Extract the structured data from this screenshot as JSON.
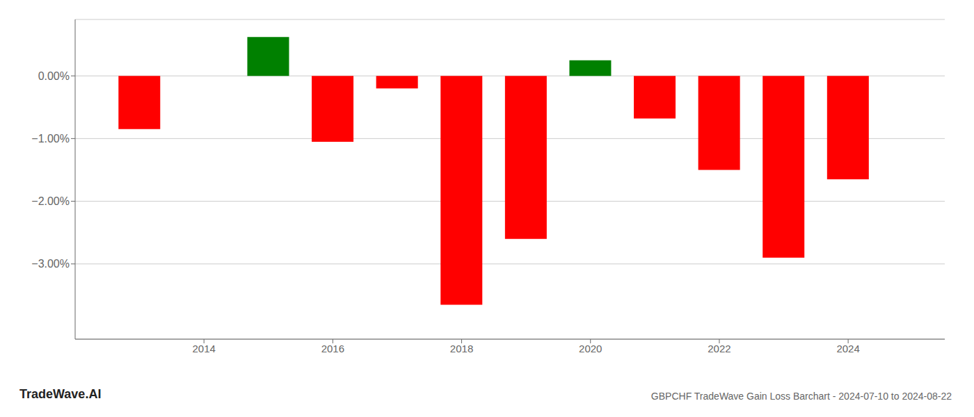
{
  "chart_data": {
    "type": "bar",
    "title": "GBPCHF TradeWave Gain Loss Barchart - 2024-07-10 to 2024-08-22",
    "annotations": [
      "TradeWave.AI"
    ],
    "x": [
      2013,
      2015,
      2016,
      2017,
      2018,
      2019,
      2020,
      2021,
      2022,
      2023,
      2024
    ],
    "values": [
      -0.85,
      0.62,
      -1.05,
      -0.2,
      -3.65,
      -2.6,
      0.25,
      -0.68,
      -1.5,
      -2.9,
      -1.65
    ],
    "colors": [
      "#ff0000",
      "#008000",
      "#ff0000",
      "#ff0000",
      "#ff0000",
      "#ff0000",
      "#008000",
      "#ff0000",
      "#ff0000",
      "#ff0000",
      "#ff0000"
    ],
    "xlim": [
      2012.0,
      2025.5
    ],
    "xticks": [
      2014,
      2016,
      2018,
      2020,
      2022,
      2024
    ],
    "ylim": [
      -4.2,
      0.9
    ],
    "yticks": [
      {
        "value": 0.0,
        "label": "0.00%"
      },
      {
        "value": -1.0,
        "label": "−1.00%"
      },
      {
        "value": -2.0,
        "label": "−2.00%"
      },
      {
        "value": -3.0,
        "label": "−3.00%"
      }
    ],
    "grid": true
  }
}
